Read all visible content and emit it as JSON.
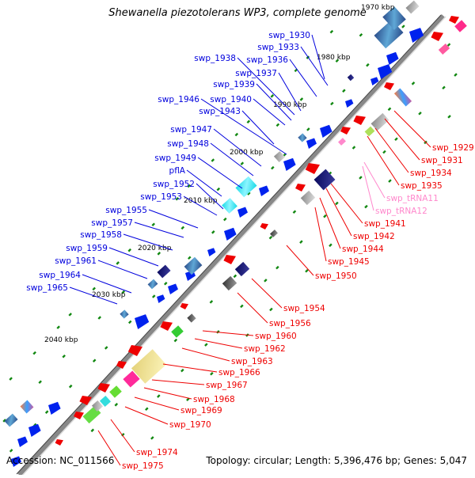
{
  "title": "Shewanella piezotolerans WP3, complete genome",
  "footer": {
    "accession": "Accession: NC_011566",
    "summary": "Topology: circular; Length: 5,396,476 bp; Genes: 5,047"
  },
  "colors": {
    "forward_label": "#0000dd",
    "reverse_label": "#ee0000",
    "trna_label": "#ff88cc",
    "backbone": "#888888",
    "forward_feature": "#0022ee",
    "reverse_feature": "#ee0000",
    "tick": "#118811"
  },
  "scale_labels": [
    "1970 kbp",
    "1980 kbp",
    "1990 kbp",
    "2000 kbp",
    "2010 kbp",
    "2020 kbp",
    "2030 kbp",
    "2040 kbp"
  ],
  "forward_genes": [
    "swp_1930",
    "swp_1933",
    "swp_1936",
    "swp_1938",
    "swp_1937",
    "swp_1939",
    "swp_1946",
    "swp_1940",
    "swp_1943",
    "swp_1947",
    "swp_1948",
    "swp_1949",
    "pflA",
    "swp_1952",
    "swp_1953",
    "swp_1955",
    "swp_1957",
    "swp_1958",
    "swp_1959",
    "swp_1961",
    "swp_1964",
    "swp_1965"
  ],
  "reverse_genes": [
    "swp_1929",
    "swp_1931",
    "swp_1934",
    "swp_1935",
    "swp_tRNA11",
    "swp_tRNA12",
    "swp_1941",
    "swp_1942",
    "swp_1944",
    "swp_1945",
    "swp_1950",
    "swp_1954",
    "swp_1956",
    "swp_1960",
    "swp_1962",
    "swp_1963",
    "swp_1966",
    "swp_1967",
    "swp_1968",
    "swp_1969",
    "swp_1970",
    "swp_1974",
    "swp_1975"
  ]
}
